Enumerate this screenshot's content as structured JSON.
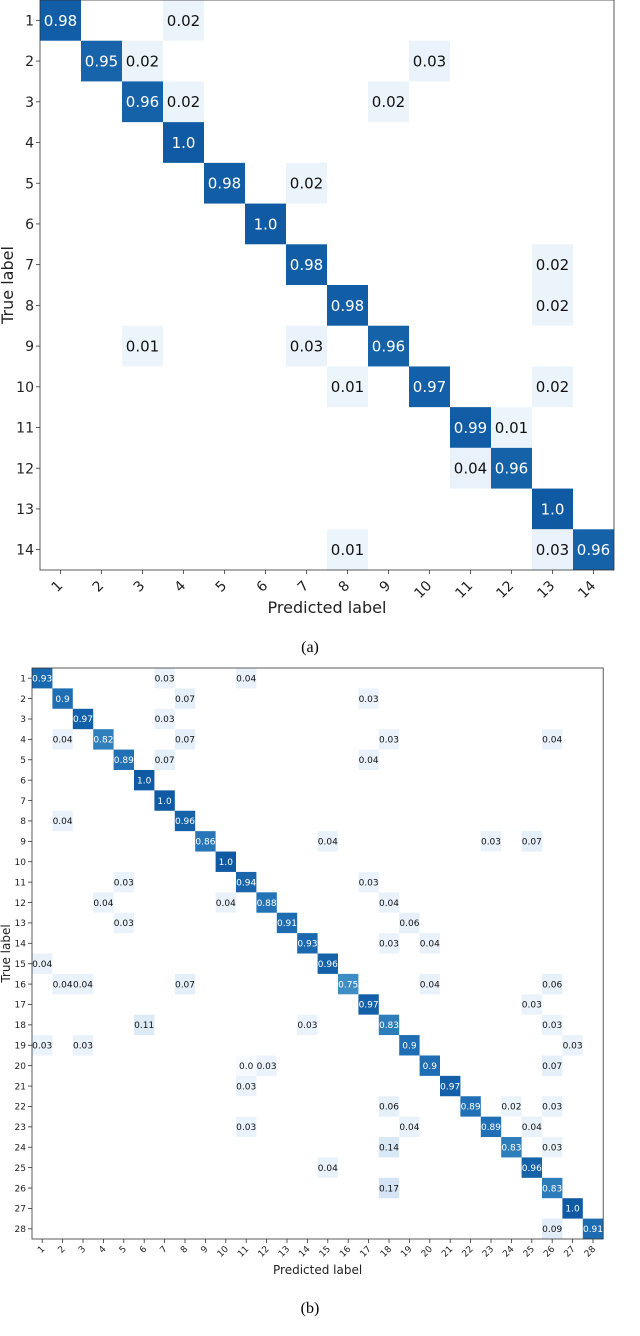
{
  "chart_data": [
    {
      "type": "heatmap",
      "caption": "(a)",
      "xlabel": "Predicted label",
      "ylabel": "True label",
      "x_tick_labels": [
        "1",
        "2",
        "3",
        "4",
        "5",
        "6",
        "7",
        "8",
        "9",
        "10",
        "11",
        "12",
        "13",
        "14"
      ],
      "y_tick_labels": [
        "1",
        "2",
        "3",
        "4",
        "5",
        "6",
        "7",
        "8",
        "9",
        "10",
        "11",
        "12",
        "13",
        "14"
      ],
      "cells": [
        {
          "r": 1,
          "c": 1,
          "v": "0.98"
        },
        {
          "r": 1,
          "c": 4,
          "v": "0.02"
        },
        {
          "r": 2,
          "c": 2,
          "v": "0.95"
        },
        {
          "r": 2,
          "c": 3,
          "v": "0.02"
        },
        {
          "r": 2,
          "c": 10,
          "v": "0.03"
        },
        {
          "r": 3,
          "c": 3,
          "v": "0.96"
        },
        {
          "r": 3,
          "c": 4,
          "v": "0.02"
        },
        {
          "r": 3,
          "c": 9,
          "v": "0.02"
        },
        {
          "r": 4,
          "c": 4,
          "v": "1.0"
        },
        {
          "r": 5,
          "c": 5,
          "v": "0.98"
        },
        {
          "r": 5,
          "c": 7,
          "v": "0.02"
        },
        {
          "r": 6,
          "c": 6,
          "v": "1.0"
        },
        {
          "r": 7,
          "c": 7,
          "v": "0.98"
        },
        {
          "r": 7,
          "c": 13,
          "v": "0.02"
        },
        {
          "r": 8,
          "c": 8,
          "v": "0.98"
        },
        {
          "r": 8,
          "c": 13,
          "v": "0.02"
        },
        {
          "r": 9,
          "c": 3,
          "v": "0.01"
        },
        {
          "r": 9,
          "c": 7,
          "v": "0.03"
        },
        {
          "r": 9,
          "c": 9,
          "v": "0.96"
        },
        {
          "r": 10,
          "c": 8,
          "v": "0.01"
        },
        {
          "r": 10,
          "c": 10,
          "v": "0.97"
        },
        {
          "r": 10,
          "c": 13,
          "v": "0.02"
        },
        {
          "r": 11,
          "c": 11,
          "v": "0.99"
        },
        {
          "r": 11,
          "c": 12,
          "v": "0.01"
        },
        {
          "r": 12,
          "c": 11,
          "v": "0.04"
        },
        {
          "r": 12,
          "c": 12,
          "v": "0.96"
        },
        {
          "r": 13,
          "c": 13,
          "v": "1.0"
        },
        {
          "r": 14,
          "c": 8,
          "v": "0.01"
        },
        {
          "r": 14,
          "c": 13,
          "v": "0.03"
        },
        {
          "r": 14,
          "c": 14,
          "v": "0.96"
        }
      ]
    },
    {
      "type": "heatmap",
      "caption": "(b)",
      "xlabel": "Predicted label",
      "ylabel": "True label",
      "x_tick_labels": [
        "1",
        "2",
        "3",
        "4",
        "5",
        "6",
        "7",
        "8",
        "9",
        "10",
        "11",
        "12",
        "13",
        "14",
        "15",
        "16",
        "17",
        "18",
        "19",
        "20",
        "21",
        "22",
        "23",
        "24",
        "25",
        "26",
        "27",
        "28"
      ],
      "y_tick_labels": [
        "1",
        "2",
        "3",
        "4",
        "5",
        "6",
        "7",
        "8",
        "9",
        "10",
        "11",
        "12",
        "13",
        "14",
        "15",
        "16",
        "17",
        "18",
        "19",
        "20",
        "21",
        "22",
        "23",
        "24",
        "25",
        "26",
        "27",
        "28"
      ],
      "cells": [
        {
          "r": 1,
          "c": 1,
          "v": "0.93"
        },
        {
          "r": 1,
          "c": 7,
          "v": "0.03"
        },
        {
          "r": 1,
          "c": 11,
          "v": "0.04"
        },
        {
          "r": 2,
          "c": 2,
          "v": "0.9"
        },
        {
          "r": 2,
          "c": 8,
          "v": "0.07"
        },
        {
          "r": 2,
          "c": 17,
          "v": "0.03"
        },
        {
          "r": 3,
          "c": 3,
          "v": "0.97"
        },
        {
          "r": 3,
          "c": 7,
          "v": "0.03"
        },
        {
          "r": 4,
          "c": 2,
          "v": "0.04"
        },
        {
          "r": 4,
          "c": 4,
          "v": "0.82"
        },
        {
          "r": 4,
          "c": 8,
          "v": "0.07"
        },
        {
          "r": 4,
          "c": 18,
          "v": "0.03"
        },
        {
          "r": 4,
          "c": 26,
          "v": "0.04"
        },
        {
          "r": 5,
          "c": 5,
          "v": "0.89"
        },
        {
          "r": 5,
          "c": 7,
          "v": "0.07"
        },
        {
          "r": 5,
          "c": 17,
          "v": "0.04"
        },
        {
          "r": 6,
          "c": 6,
          "v": "1.0"
        },
        {
          "r": 7,
          "c": 7,
          "v": "1.0"
        },
        {
          "r": 8,
          "c": 2,
          "v": "0.04"
        },
        {
          "r": 8,
          "c": 8,
          "v": "0.96"
        },
        {
          "r": 9,
          "c": 9,
          "v": "0.86"
        },
        {
          "r": 9,
          "c": 15,
          "v": "0.04"
        },
        {
          "r": 9,
          "c": 23,
          "v": "0.03"
        },
        {
          "r": 9,
          "c": 25,
          "v": "0.07"
        },
        {
          "r": 10,
          "c": 10,
          "v": "1.0"
        },
        {
          "r": 11,
          "c": 5,
          "v": "0.03"
        },
        {
          "r": 11,
          "c": 11,
          "v": "0.94"
        },
        {
          "r": 11,
          "c": 17,
          "v": "0.03"
        },
        {
          "r": 12,
          "c": 4,
          "v": "0.04"
        },
        {
          "r": 12,
          "c": 10,
          "v": "0.04"
        },
        {
          "r": 12,
          "c": 12,
          "v": "0.88"
        },
        {
          "r": 12,
          "c": 18,
          "v": "0.04"
        },
        {
          "r": 13,
          "c": 5,
          "v": "0.03"
        },
        {
          "r": 13,
          "c": 13,
          "v": "0.91"
        },
        {
          "r": 13,
          "c": 19,
          "v": "0.06"
        },
        {
          "r": 14,
          "c": 14,
          "v": "0.93"
        },
        {
          "r": 14,
          "c": 18,
          "v": "0.03"
        },
        {
          "r": 14,
          "c": 20,
          "v": "0.04"
        },
        {
          "r": 15,
          "c": 1,
          "v": "0.04"
        },
        {
          "r": 15,
          "c": 15,
          "v": "0.96"
        },
        {
          "r": 16,
          "c": 2,
          "v": "0.04"
        },
        {
          "r": 16,
          "c": 3,
          "v": "0.04"
        },
        {
          "r": 16,
          "c": 8,
          "v": "0.07"
        },
        {
          "r": 16,
          "c": 16,
          "v": "0.75"
        },
        {
          "r": 16,
          "c": 20,
          "v": "0.04"
        },
        {
          "r": 16,
          "c": 26,
          "v": "0.06"
        },
        {
          "r": 17,
          "c": 17,
          "v": "0.97"
        },
        {
          "r": 17,
          "c": 25,
          "v": "0.03"
        },
        {
          "r": 18,
          "c": 6,
          "v": "0.11"
        },
        {
          "r": 18,
          "c": 14,
          "v": "0.03"
        },
        {
          "r": 18,
          "c": 18,
          "v": "0.83"
        },
        {
          "r": 18,
          "c": 26,
          "v": "0.03"
        },
        {
          "r": 19,
          "c": 1,
          "v": "0.03"
        },
        {
          "r": 19,
          "c": 3,
          "v": "0.03"
        },
        {
          "r": 19,
          "c": 19,
          "v": "0.9"
        },
        {
          "r": 19,
          "c": 27,
          "v": "0.03"
        },
        {
          "r": 20,
          "c": 11,
          "v": "0.0"
        },
        {
          "r": 20,
          "c": 12,
          "v": "0.03"
        },
        {
          "r": 20,
          "c": 20,
          "v": "0.9"
        },
        {
          "r": 20,
          "c": 26,
          "v": "0.07"
        },
        {
          "r": 21,
          "c": 11,
          "v": "0.03"
        },
        {
          "r": 21,
          "c": 21,
          "v": "0.97"
        },
        {
          "r": 22,
          "c": 18,
          "v": "0.06"
        },
        {
          "r": 22,
          "c": 22,
          "v": "0.89"
        },
        {
          "r": 22,
          "c": 24,
          "v": "0.02"
        },
        {
          "r": 22,
          "c": 26,
          "v": "0.03"
        },
        {
          "r": 23,
          "c": 11,
          "v": "0.03"
        },
        {
          "r": 23,
          "c": 19,
          "v": "0.04"
        },
        {
          "r": 23,
          "c": 23,
          "v": "0.89"
        },
        {
          "r": 23,
          "c": 25,
          "v": "0.04"
        },
        {
          "r": 24,
          "c": 18,
          "v": "0.14"
        },
        {
          "r": 24,
          "c": 24,
          "v": "0.83"
        },
        {
          "r": 24,
          "c": 26,
          "v": "0.03"
        },
        {
          "r": 25,
          "c": 15,
          "v": "0.04"
        },
        {
          "r": 25,
          "c": 25,
          "v": "0.96"
        },
        {
          "r": 26,
          "c": 18,
          "v": "0.17"
        },
        {
          "r": 26,
          "c": 26,
          "v": "0.83"
        },
        {
          "r": 27,
          "c": 27,
          "v": "1.0"
        },
        {
          "r": 28,
          "c": 26,
          "v": "0.09"
        },
        {
          "r": 28,
          "c": 28,
          "v": "0.91"
        }
      ]
    }
  ]
}
